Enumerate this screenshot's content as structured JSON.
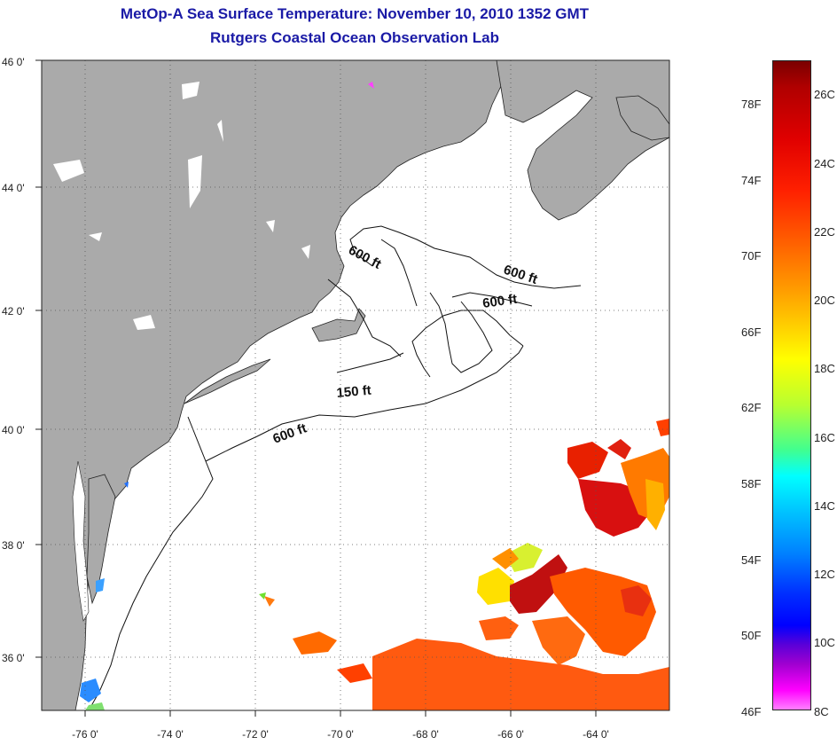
{
  "title": {
    "line1": "MetOp-A Sea Surface Temperature:  November 10, 2010 1352 GMT",
    "line2": "Rutgers Coastal Ocean Observation Lab"
  },
  "map": {
    "lat_labels": [
      "46 0'",
      "44 0'",
      "42 0'",
      "40 0'",
      "38 0'",
      "36 0'"
    ],
    "lon_labels": [
      "-76 0'",
      "-74 0'",
      "-72 0'",
      "-70 0'",
      "-68 0'",
      "-66 0'",
      "-64 0'"
    ],
    "lat_range": [
      35,
      46
    ],
    "lon_range": [
      -77,
      -62.2
    ],
    "contour_labels": [
      "600 ft",
      "600 ft",
      "600 ft",
      "150 ft",
      "600 ft"
    ],
    "colors": {
      "land": "#aaaaaa",
      "ocean": "#ffffff",
      "grid": "#555555"
    }
  },
  "colorbar": {
    "fahrenheit": [
      "78F",
      "74F",
      "70F",
      "66F",
      "62F",
      "58F",
      "54F",
      "50F",
      "46F"
    ],
    "celsius": [
      "26C",
      "24C",
      "22C",
      "20C",
      "18C",
      "16C",
      "14C",
      "12C",
      "10C",
      "8C"
    ]
  }
}
